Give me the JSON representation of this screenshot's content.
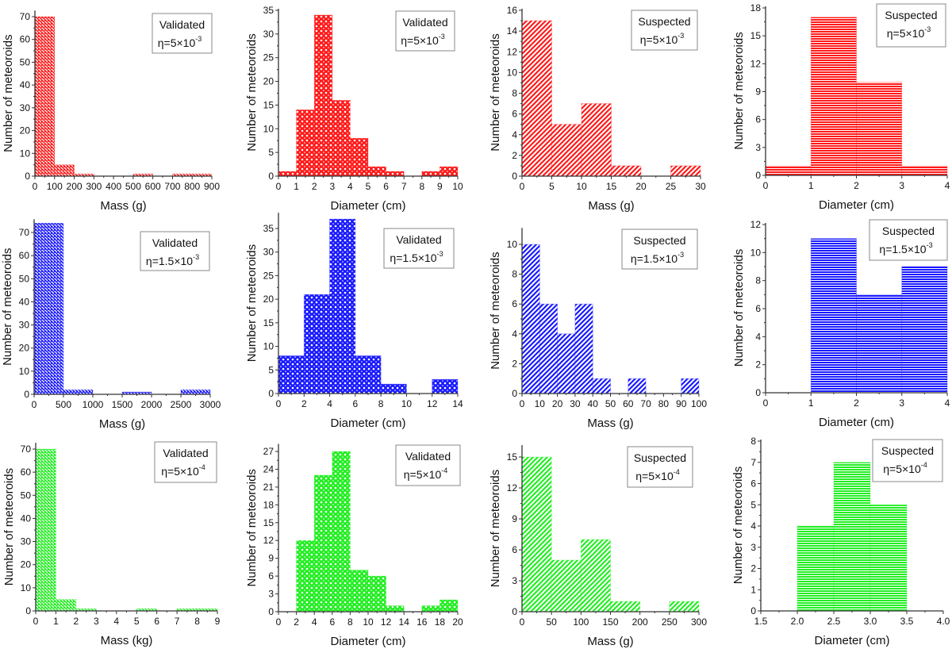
{
  "figure": {
    "colors": {
      "red": "#ff1a1a",
      "blue": "#1a1aff",
      "green": "#22ee22",
      "axis": "#333333",
      "frame": "#888888"
    }
  },
  "chart_data": [
    {
      "type": "bar",
      "id": "p1",
      "color": "red",
      "pattern": "diag-dense",
      "legend_title": "Validated",
      "legend_eta": "η=5×10",
      "legend_exp": "-3",
      "xlabel": "Mass (g)",
      "ylabel": "Number of meteoroids",
      "xlim": [
        0,
        900
      ],
      "ylim": [
        0,
        72
      ],
      "xticks": [
        0,
        100,
        200,
        300,
        400,
        500,
        600,
        700,
        800,
        900
      ],
      "yticks": [
        0,
        10,
        20,
        30,
        40,
        50,
        60,
        70
      ],
      "bins": [
        [
          0,
          100,
          70
        ],
        [
          100,
          200,
          5
        ],
        [
          200,
          300,
          1
        ],
        [
          500,
          600,
          1
        ],
        [
          700,
          800,
          1
        ],
        [
          800,
          900,
          1
        ]
      ]
    },
    {
      "type": "bar",
      "id": "p2",
      "color": "red",
      "pattern": "dots",
      "legend_title": "Validated",
      "legend_eta": "η=5×10",
      "legend_exp": "-3",
      "xlabel": "Diameter (cm)",
      "ylabel": "Number of meteoroids",
      "xlim": [
        0,
        10
      ],
      "ylim": [
        0,
        35
      ],
      "xticks": [
        0,
        1,
        2,
        3,
        4,
        5,
        6,
        7,
        8,
        9,
        10
      ],
      "yticks": [
        0,
        5,
        10,
        15,
        20,
        25,
        30,
        35
      ],
      "bins": [
        [
          0,
          1,
          1
        ],
        [
          1,
          2,
          14
        ],
        [
          2,
          3,
          34
        ],
        [
          3,
          4,
          16
        ],
        [
          4,
          5,
          8
        ],
        [
          5,
          6,
          2
        ],
        [
          6,
          7,
          1
        ],
        [
          8,
          9,
          1
        ],
        [
          9,
          10,
          2
        ]
      ]
    },
    {
      "type": "bar",
      "id": "p3",
      "color": "red",
      "pattern": "diag-wide",
      "legend_title": "Suspected",
      "legend_eta": "η=5×10",
      "legend_exp": "-3",
      "xlabel": "Mass (g)",
      "ylabel": "Number of meteoroids",
      "xlim": [
        0,
        30
      ],
      "ylim": [
        0,
        16
      ],
      "xticks": [
        0,
        5,
        10,
        15,
        20,
        25,
        30
      ],
      "yticks": [
        0,
        2,
        4,
        6,
        8,
        10,
        12,
        14,
        16
      ],
      "bins": [
        [
          0,
          5,
          15
        ],
        [
          5,
          10,
          5
        ],
        [
          10,
          15,
          7
        ],
        [
          15,
          20,
          1
        ],
        [
          25,
          30,
          1
        ]
      ]
    },
    {
      "type": "bar",
      "id": "p4",
      "color": "red",
      "pattern": "horizontal",
      "legend_title": "Suspected",
      "legend_eta": "η=5×10",
      "legend_exp": "-3",
      "xlabel": "Diameter (cm)",
      "ylabel": "Number of meteoroids",
      "xlim": [
        0,
        4
      ],
      "ylim": [
        0,
        18
      ],
      "xticks": [
        0,
        1,
        2,
        3,
        4
      ],
      "yticks": [
        0,
        3,
        6,
        9,
        12,
        15,
        18
      ],
      "bins": [
        [
          0,
          1,
          1
        ],
        [
          1,
          2,
          17
        ],
        [
          2,
          3,
          10
        ],
        [
          3,
          4,
          1
        ]
      ]
    },
    {
      "type": "bar",
      "id": "p5",
      "color": "blue",
      "pattern": "diag-dense",
      "legend_title": "Validated",
      "legend_eta": "η=1.5×10",
      "legend_exp": "-3",
      "xlabel": "Mass (g)",
      "ylabel": "Number of meteoroids",
      "xlim": [
        0,
        3000
      ],
      "ylim": [
        0,
        75
      ],
      "xticks": [
        0,
        500,
        1000,
        1500,
        2000,
        2500,
        3000
      ],
      "yticks": [
        0,
        10,
        20,
        30,
        40,
        50,
        60,
        70
      ],
      "bins": [
        [
          0,
          500,
          74
        ],
        [
          500,
          1000,
          2
        ],
        [
          1500,
          2000,
          1
        ],
        [
          2500,
          3000,
          2
        ]
      ]
    },
    {
      "type": "bar",
      "id": "p6",
      "color": "blue",
      "pattern": "dots",
      "legend_title": "Validated",
      "legend_eta": "η=1.5×10",
      "legend_exp": "-3",
      "xlabel": "Diameter (cm)",
      "ylabel": "Number of meteoroids",
      "xlim": [
        0,
        14
      ],
      "ylim": [
        0,
        38
      ],
      "xticks": [
        0,
        2,
        4,
        6,
        8,
        10,
        12,
        14
      ],
      "yticks": [
        0,
        5,
        10,
        15,
        20,
        25,
        30,
        35
      ],
      "bins": [
        [
          0,
          2,
          8
        ],
        [
          2,
          4,
          21
        ],
        [
          4,
          6,
          37
        ],
        [
          6,
          8,
          8
        ],
        [
          8,
          10,
          2
        ],
        [
          12,
          14,
          3
        ]
      ]
    },
    {
      "type": "bar",
      "id": "p7",
      "color": "blue",
      "pattern": "diag-wide",
      "legend_title": "Suspected",
      "legend_eta": "η=1.5×10",
      "legend_exp": "-3",
      "xlabel": "Mass (g)",
      "ylabel": "Number of meteoroids",
      "xlim": [
        0,
        100
      ],
      "ylim": [
        0,
        11
      ],
      "xticks": [
        0,
        10,
        20,
        30,
        40,
        50,
        60,
        70,
        80,
        90,
        100
      ],
      "yticks": [
        0,
        2,
        4,
        6,
        8,
        10
      ],
      "bins": [
        [
          0,
          10,
          10
        ],
        [
          10,
          20,
          6
        ],
        [
          20,
          30,
          4
        ],
        [
          30,
          40,
          6
        ],
        [
          40,
          50,
          1
        ],
        [
          60,
          70,
          1
        ],
        [
          90,
          100,
          1
        ]
      ]
    },
    {
      "type": "bar",
      "id": "p8",
      "color": "blue",
      "pattern": "horizontal",
      "legend_title": "Suspected",
      "legend_eta": "η=1.5×10",
      "legend_exp": "-3",
      "xlabel": "Diameter (cm)",
      "ylabel": "Number of meteoroids",
      "xlim": [
        0,
        4
      ],
      "ylim": [
        0,
        12
      ],
      "xticks": [
        0,
        1,
        2,
        3,
        4
      ],
      "yticks": [
        0,
        2,
        4,
        6,
        8,
        10,
        12
      ],
      "bins": [
        [
          1,
          2,
          11
        ],
        [
          2,
          3,
          7
        ],
        [
          3,
          4,
          9
        ]
      ]
    },
    {
      "type": "bar",
      "id": "p9",
      "color": "green",
      "pattern": "diag-dense",
      "legend_title": "Validated",
      "legend_eta": "η=5×10",
      "legend_exp": "-4",
      "xlabel": "Mass (kg)",
      "ylabel": "Number of meteoroids",
      "xlim": [
        0,
        9
      ],
      "ylim": [
        0,
        72
      ],
      "xticks": [
        0,
        1,
        2,
        3,
        4,
        5,
        6,
        7,
        8,
        9
      ],
      "yticks": [
        0,
        10,
        20,
        30,
        40,
        50,
        60,
        70
      ],
      "bins": [
        [
          0,
          1,
          70
        ],
        [
          1,
          2,
          5
        ],
        [
          2,
          3,
          1
        ],
        [
          5,
          6,
          1
        ],
        [
          7,
          8,
          1
        ],
        [
          8,
          9,
          1
        ]
      ]
    },
    {
      "type": "bar",
      "id": "p10",
      "color": "green",
      "pattern": "dots",
      "legend_title": "Validated",
      "legend_eta": "η=5×10",
      "legend_exp": "-4",
      "xlabel": "Diameter (cm)",
      "ylabel": "Number of meteoroids",
      "xlim": [
        0,
        20
      ],
      "ylim": [
        0,
        28
      ],
      "xticks": [
        0,
        2,
        4,
        6,
        8,
        10,
        12,
        14,
        16,
        18,
        20
      ],
      "yticks": [
        0,
        3,
        6,
        9,
        12,
        15,
        18,
        21,
        24,
        27
      ],
      "bins": [
        [
          2,
          4,
          12
        ],
        [
          4,
          6,
          23
        ],
        [
          6,
          8,
          27
        ],
        [
          8,
          10,
          7
        ],
        [
          10,
          12,
          6
        ],
        [
          12,
          14,
          1
        ],
        [
          16,
          18,
          1
        ],
        [
          18,
          20,
          2
        ]
      ]
    },
    {
      "type": "bar",
      "id": "p11",
      "color": "green",
      "pattern": "diag-wide",
      "legend_title": "Suspected",
      "legend_eta": "η=5×10",
      "legend_exp": "-4",
      "xlabel": "Mass (g)",
      "ylabel": "Number of meteoroids",
      "xlim": [
        0,
        300
      ],
      "ylim": [
        0,
        16
      ],
      "xticks": [
        0,
        50,
        100,
        150,
        200,
        250,
        300
      ],
      "yticks": [
        0,
        3,
        6,
        9,
        12,
        15
      ],
      "bins": [
        [
          0,
          50,
          15
        ],
        [
          50,
          100,
          5
        ],
        [
          100,
          150,
          7
        ],
        [
          150,
          200,
          1
        ],
        [
          250,
          300,
          1
        ]
      ]
    },
    {
      "type": "bar",
      "id": "p12",
      "color": "green",
      "pattern": "horizontal",
      "legend_title": "Suspected",
      "legend_eta": "η=5×10",
      "legend_exp": "-4",
      "xlabel": "Diameter (cm)",
      "ylabel": "Number of meteoroids",
      "xlim": [
        1.5,
        4.0
      ],
      "ylim": [
        0,
        8
      ],
      "xticks": [
        1.5,
        2.0,
        2.5,
        3.0,
        3.5,
        4.0
      ],
      "xtick_labels": [
        "1.5",
        "2.0",
        "2.5",
        "3.0",
        "3.5",
        "4.0"
      ],
      "yticks": [
        0,
        1,
        2,
        3,
        4,
        5,
        6,
        7,
        8
      ],
      "bins": [
        [
          2.0,
          2.5,
          4
        ],
        [
          2.5,
          3.0,
          7
        ],
        [
          3.0,
          3.5,
          5
        ]
      ]
    }
  ]
}
